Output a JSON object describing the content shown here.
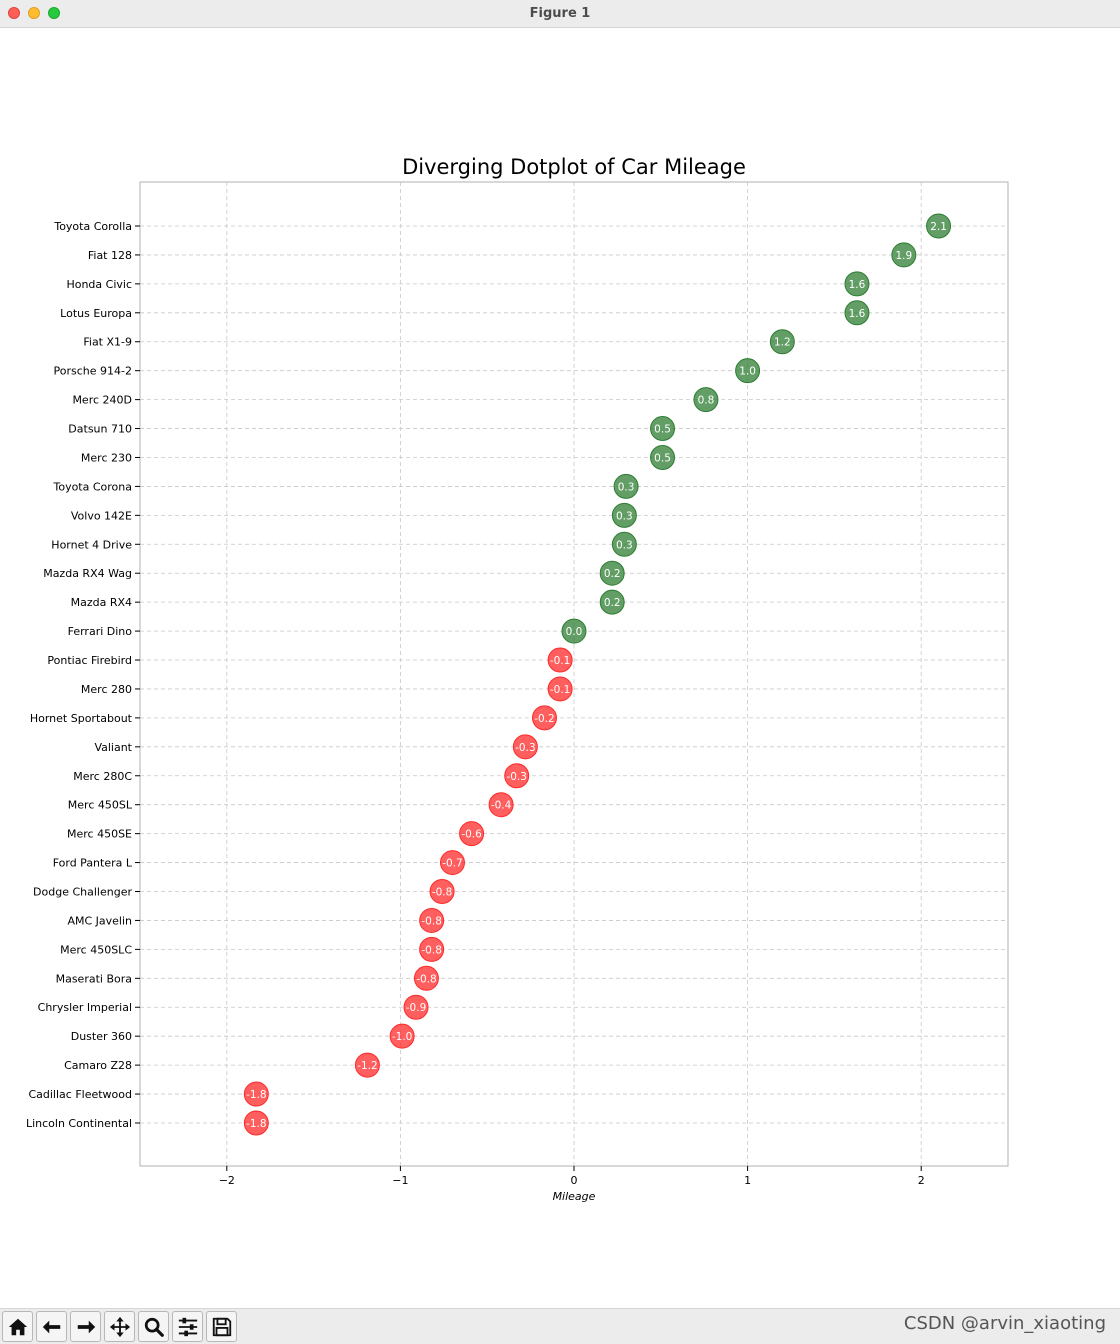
{
  "window": {
    "title": "Figure 1"
  },
  "watermark": "CSDN @arvin_xiaoting",
  "toolbar": {
    "icons": [
      "home-icon",
      "back-arrow-icon",
      "forward-arrow-icon",
      "pan-icon",
      "zoom-icon",
      "configure-subplots-icon",
      "save-icon"
    ]
  },
  "colors": {
    "positive": "#2e7d32",
    "negative": "#ff2a2a",
    "grid": "#c8c8c8",
    "text": "#000000"
  },
  "chart_data": {
    "type": "scatter",
    "title": "Diverging Dotplot of Car Mileage",
    "xlabel": "Mileage",
    "ylabel": "",
    "xlim": [
      -2.5,
      2.5
    ],
    "xticks": [
      -2,
      -1,
      0,
      1,
      2
    ],
    "xtick_labels": [
      "−2",
      "−1",
      "0",
      "1",
      "2"
    ],
    "grid": true,
    "categories": [
      "Toyota Corolla",
      "Fiat 128",
      "Honda Civic",
      "Lotus Europa",
      "Fiat X1-9",
      "Porsche 914-2",
      "Merc 240D",
      "Datsun 710",
      "Merc 230",
      "Toyota Corona",
      "Volvo 142E",
      "Hornet 4 Drive",
      "Mazda RX4 Wag",
      "Mazda RX4",
      "Ferrari Dino",
      "Pontiac Firebird",
      "Merc 280",
      "Hornet Sportabout",
      "Valiant",
      "Merc 280C",
      "Merc 450SL",
      "Merc 450SE",
      "Ford Pantera L",
      "Dodge Challenger",
      "AMC Javelin",
      "Merc 450SLC",
      "Maserati Bora",
      "Chrysler Imperial",
      "Duster 360",
      "Camaro Z28",
      "Cadillac Fleetwood",
      "Lincoln Continental"
    ],
    "values": [
      2.1,
      1.9,
      1.63,
      1.63,
      1.2,
      1.0,
      0.76,
      0.51,
      0.51,
      0.3,
      0.29,
      0.29,
      0.22,
      0.22,
      0.0,
      -0.08,
      -0.08,
      -0.17,
      -0.28,
      -0.33,
      -0.42,
      -0.59,
      -0.7,
      -0.76,
      -0.82,
      -0.82,
      -0.85,
      -0.91,
      -0.99,
      -1.19,
      -1.83,
      -1.83
    ],
    "labels": [
      "2.1",
      "1.9",
      "1.6",
      "1.6",
      "1.2",
      "1.0",
      "0.8",
      "0.5",
      "0.5",
      "0.3",
      "0.3",
      "0.3",
      "0.2",
      "0.2",
      "0.0",
      "-0.1",
      "-0.1",
      "-0.2",
      "-0.3",
      "-0.3",
      "-0.4",
      "-0.6",
      "-0.7",
      "-0.8",
      "-0.8",
      "-0.8",
      "-0.8",
      "-0.9",
      "-1.0",
      "-1.2",
      "-1.8",
      "-1.8"
    ]
  }
}
